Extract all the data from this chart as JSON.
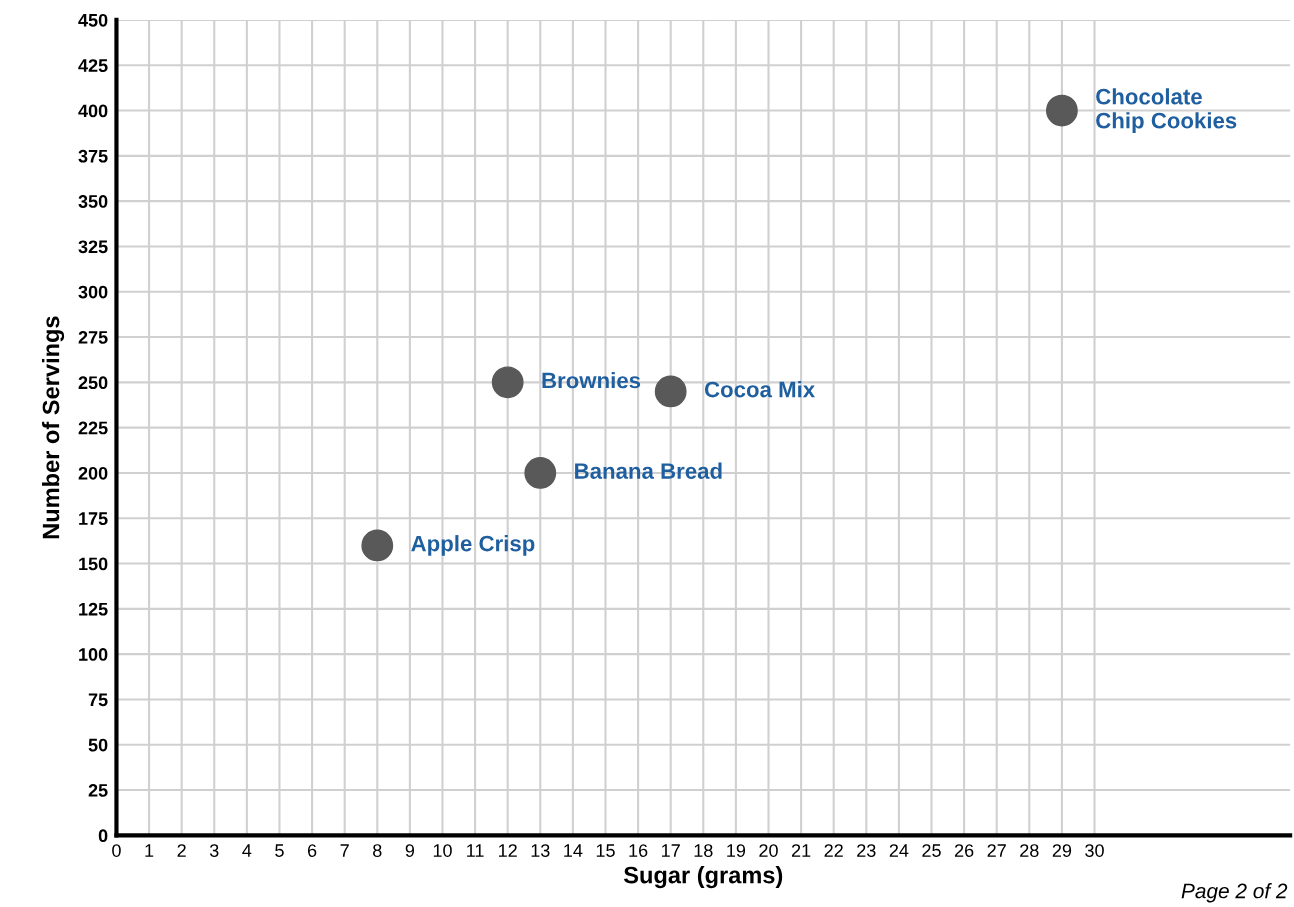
{
  "chart_data": {
    "type": "scatter",
    "xlabel": "Sugar (grams)",
    "ylabel": "Number of Servings",
    "x": [
      8,
      12,
      13,
      17,
      29
    ],
    "series": [
      {
        "color": "#595959",
        "values": [
          160,
          250,
          200,
          245,
          400
        ]
      }
    ],
    "marker": "circle",
    "xlim": [
      0,
      36
    ],
    "xticks": [
      0,
      1,
      2,
      3,
      4,
      5,
      6,
      7,
      8,
      9,
      10,
      11,
      12,
      13,
      14,
      15,
      16,
      17,
      18,
      19,
      20,
      21,
      22,
      23,
      24,
      25,
      26,
      27,
      28,
      29,
      30
    ],
    "ylim": [
      0,
      450
    ],
    "yticks": [
      0,
      25,
      50,
      75,
      100,
      125,
      150,
      175,
      200,
      225,
      250,
      275,
      300,
      325,
      350,
      375,
      400,
      425,
      450
    ],
    "grid": true,
    "legend": false,
    "annotations": [
      {
        "text": "Apple Crisp",
        "x": 8,
        "y": 160
      },
      {
        "text": "Brownies",
        "x": 12,
        "y": 250
      },
      {
        "text": "Banana Bread",
        "x": 13,
        "y": 200
      },
      {
        "text": "Cocoa Mix",
        "x": 17,
        "y": 245
      },
      {
        "text": "Chocolate\nChip Cookies",
        "x": 29,
        "y": 400
      },
      "Page 2 of 2"
    ]
  }
}
